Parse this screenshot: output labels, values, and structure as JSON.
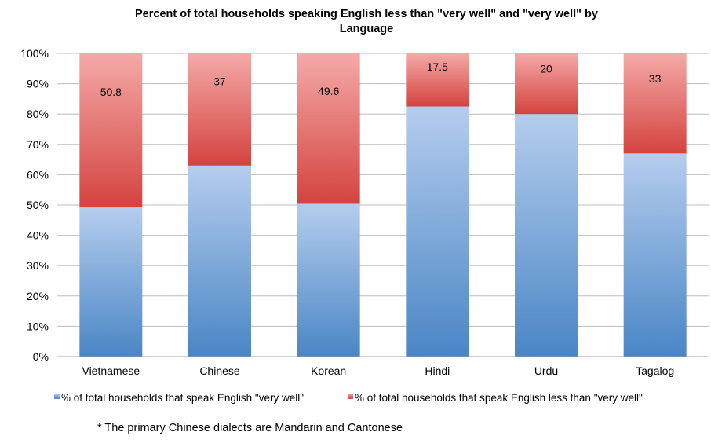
{
  "chart_data": {
    "type": "bar",
    "stacked": true,
    "title": "Percent of total households speaking English less than \"very well\" and \"very well\" by Language",
    "title_lines": [
      "Percent of total households speaking English less than \"very well\" and \"very well\" by",
      "Language"
    ],
    "xlabel": "",
    "ylabel": "",
    "ylim": [
      0,
      100
    ],
    "y_ticks": [
      "0%",
      "10%",
      "20%",
      "30%",
      "40%",
      "50%",
      "60%",
      "70%",
      "80%",
      "90%",
      "100%"
    ],
    "categories": [
      "Vietnamese",
      "Chinese",
      "Korean",
      "Hindi",
      "Urdu",
      "Tagalog"
    ],
    "series": [
      {
        "name": "% of total households that speak English \"very well\"",
        "values": [
          49.2,
          63,
          50.4,
          82.5,
          80,
          67
        ],
        "color": "#4f86c6"
      },
      {
        "name": "% of total households that speak English less than \"very well\"",
        "values": [
          50.8,
          37,
          49.6,
          17.5,
          20,
          33
        ],
        "color": "#d64a45",
        "data_labels": [
          "50.8",
          "37",
          "49.6",
          "17.5",
          "20",
          "33"
        ]
      }
    ],
    "grid": true,
    "legend_position": "bottom"
  },
  "footnote": "* The primary Chinese dialects are Mandarin and Cantonese"
}
